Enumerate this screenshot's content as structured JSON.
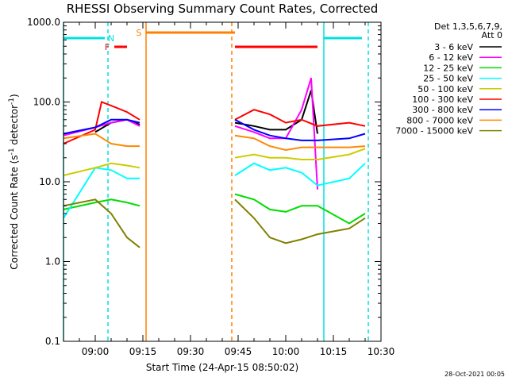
{
  "chart_data": {
    "type": "line",
    "title": "RHESSI Observing Summary Count Rates, Corrected",
    "xlabel": "Start Time (24-Apr-15 08:50:02)",
    "ylabel_main": "Corrected Count Rate (s",
    "ylabel_sup1": "-1",
    "ylabel_mid": " detector",
    "ylabel_sup2": "-1",
    "ylabel_end": ")",
    "y_scale": "log",
    "ylim": [
      0.1,
      1000
    ],
    "xlim": [
      "08:50",
      "10:30"
    ],
    "x_ticks": [
      "09:00",
      "09:15",
      "09:30",
      "09:45",
      "10:00",
      "10:15",
      "10:30"
    ],
    "y_ticks": [
      "0.1",
      "1.0",
      "10.0",
      "100.0",
      "1000.0"
    ],
    "legend_header": [
      "Det 1,3,5,6,7,9,",
      "Att 0"
    ],
    "legend_placement": "right",
    "series": [
      {
        "name": "3 - 6 keV",
        "color": "#000000"
      },
      {
        "name": "6 - 12 keV",
        "color": "#ff00ff"
      },
      {
        "name": "12 - 25 keV",
        "color": "#00dd00"
      },
      {
        "name": "25 - 50 keV",
        "color": "#00ffff"
      },
      {
        "name": "50 - 100 keV",
        "color": "#cccc00"
      },
      {
        "name": "100 - 300 keV",
        "color": "#ff0000"
      },
      {
        "name": "300 - 800 keV",
        "color": "#0000ff"
      },
      {
        "name": "800 - 7000 keV",
        "color": "#ff8800"
      },
      {
        "name": "7000 - 15000 keV",
        "color": "#808000"
      }
    ],
    "series_points": {
      "3 - 6 keV": [
        [
          "09:00",
          42
        ],
        [
          "09:05",
          55
        ],
        [
          "09:10",
          60
        ],
        [
          "09:14",
          52
        ],
        [
          "09:44",
          55
        ],
        [
          "09:50",
          50
        ],
        [
          "09:55",
          45
        ],
        [
          "10:00",
          45
        ],
        [
          "10:05",
          60
        ],
        [
          "10:08",
          140
        ],
        [
          "10:10",
          40
        ]
      ],
      "6 - 12 keV": [
        [
          "08:50",
          38
        ],
        [
          "09:00",
          48
        ],
        [
          "09:05",
          55
        ],
        [
          "09:10",
          60
        ],
        [
          "09:14",
          50
        ],
        [
          "09:44",
          50
        ],
        [
          "09:50",
          42
        ],
        [
          "09:55",
          35
        ],
        [
          "10:00",
          35
        ],
        [
          "10:05",
          80
        ],
        [
          "10:08",
          200
        ],
        [
          "10:10",
          8
        ]
      ],
      "12 - 25 keV": [
        [
          "08:50",
          4.5
        ],
        [
          "09:00",
          5.5
        ],
        [
          "09:05",
          6
        ],
        [
          "09:10",
          5.5
        ],
        [
          "09:14",
          5
        ],
        [
          "09:44",
          7
        ],
        [
          "09:50",
          6
        ],
        [
          "09:55",
          4.5
        ],
        [
          "10:00",
          4.2
        ],
        [
          "10:05",
          5
        ],
        [
          "10:10",
          5
        ],
        [
          "10:20",
          3
        ],
        [
          "10:25",
          4
        ]
      ],
      "25 - 50 keV": [
        [
          "08:50",
          3.5
        ],
        [
          "09:00",
          15
        ],
        [
          "09:05",
          14
        ],
        [
          "09:10",
          11
        ],
        [
          "09:14",
          11
        ],
        [
          "09:44",
          12
        ],
        [
          "09:50",
          17
        ],
        [
          "09:55",
          14
        ],
        [
          "10:00",
          15
        ],
        [
          "10:05",
          13
        ],
        [
          "10:10",
          9
        ],
        [
          "10:20",
          11
        ],
        [
          "10:25",
          17
        ]
      ],
      "50 - 100 keV": [
        [
          "08:50",
          12
        ],
        [
          "09:00",
          15
        ],
        [
          "09:05",
          17
        ],
        [
          "09:10",
          16
        ],
        [
          "09:14",
          15
        ],
        [
          "09:44",
          20
        ],
        [
          "09:50",
          22
        ],
        [
          "09:55",
          20
        ],
        [
          "10:00",
          20
        ],
        [
          "10:05",
          19
        ],
        [
          "10:10",
          19
        ],
        [
          "10:20",
          22
        ],
        [
          "10:25",
          26
        ]
      ],
      "100 - 300 keV": [
        [
          "08:50",
          30
        ],
        [
          "09:00",
          45
        ],
        [
          "09:02",
          100
        ],
        [
          "09:05",
          90
        ],
        [
          "09:10",
          75
        ],
        [
          "09:14",
          60
        ],
        [
          "09:44",
          60
        ],
        [
          "09:50",
          80
        ],
        [
          "09:55",
          70
        ],
        [
          "10:00",
          55
        ],
        [
          "10:05",
          60
        ],
        [
          "10:10",
          50
        ],
        [
          "10:20",
          55
        ],
        [
          "10:25",
          50
        ]
      ],
      "300 - 800 keV": [
        [
          "08:50",
          40
        ],
        [
          "09:00",
          48
        ],
        [
          "09:05",
          60
        ],
        [
          "09:10",
          60
        ],
        [
          "09:14",
          55
        ],
        [
          "09:44",
          60
        ],
        [
          "09:50",
          45
        ],
        [
          "09:55",
          38
        ],
        [
          "10:00",
          35
        ],
        [
          "10:05",
          33
        ],
        [
          "10:10",
          33
        ],
        [
          "10:20",
          35
        ],
        [
          "10:25",
          40
        ]
      ],
      "800 - 7000 keV": [
        [
          "08:50",
          35
        ],
        [
          "09:00",
          40
        ],
        [
          "09:05",
          30
        ],
        [
          "09:10",
          28
        ],
        [
          "09:14",
          28
        ],
        [
          "09:44",
          38
        ],
        [
          "09:50",
          35
        ],
        [
          "09:55",
          28
        ],
        [
          "10:00",
          25
        ],
        [
          "10:05",
          27
        ],
        [
          "10:10",
          27
        ],
        [
          "10:20",
          27
        ],
        [
          "10:25",
          28
        ]
      ],
      "7000 - 15000 keV": [
        [
          "08:50",
          5
        ],
        [
          "09:00",
          6
        ],
        [
          "09:05",
          4
        ],
        [
          "09:10",
          2
        ],
        [
          "09:14",
          1.5
        ],
        [
          "09:44",
          6
        ],
        [
          "09:50",
          3.5
        ],
        [
          "09:55",
          2
        ],
        [
          "10:00",
          1.7
        ],
        [
          "10:05",
          1.9
        ],
        [
          "10:10",
          2.2
        ],
        [
          "10:20",
          2.6
        ],
        [
          "10:25",
          3.5
        ]
      ]
    },
    "flags": [
      {
        "label": "N",
        "color": "#00e0e0",
        "segments": [
          [
            "08:50",
            "09:03"
          ],
          [
            "10:12",
            "10:24"
          ]
        ]
      },
      {
        "label": "F",
        "color": "#ff0000",
        "segments": [
          [
            "09:06",
            "09:10"
          ],
          [
            "09:44",
            "10:10"
          ]
        ]
      },
      {
        "label": "S",
        "color": "#ff8000",
        "segments": [
          [
            "09:16",
            "09:44"
          ]
        ]
      }
    ],
    "vertical_markers": [
      {
        "time": "08:50",
        "color": "#00e0e0",
        "style": "solid"
      },
      {
        "time": "09:04",
        "color": "#00e0e0",
        "style": "dashed"
      },
      {
        "time": "09:16",
        "color": "#ff8000",
        "style": "solid"
      },
      {
        "time": "09:43",
        "color": "#ff8000",
        "style": "dashed"
      },
      {
        "time": "10:12",
        "color": "#00e0e0",
        "style": "solid"
      },
      {
        "time": "10:26",
        "color": "#00e0e0",
        "style": "dashed"
      }
    ],
    "footer": "28-Oct-2021 00:05",
    "grid": false
  }
}
